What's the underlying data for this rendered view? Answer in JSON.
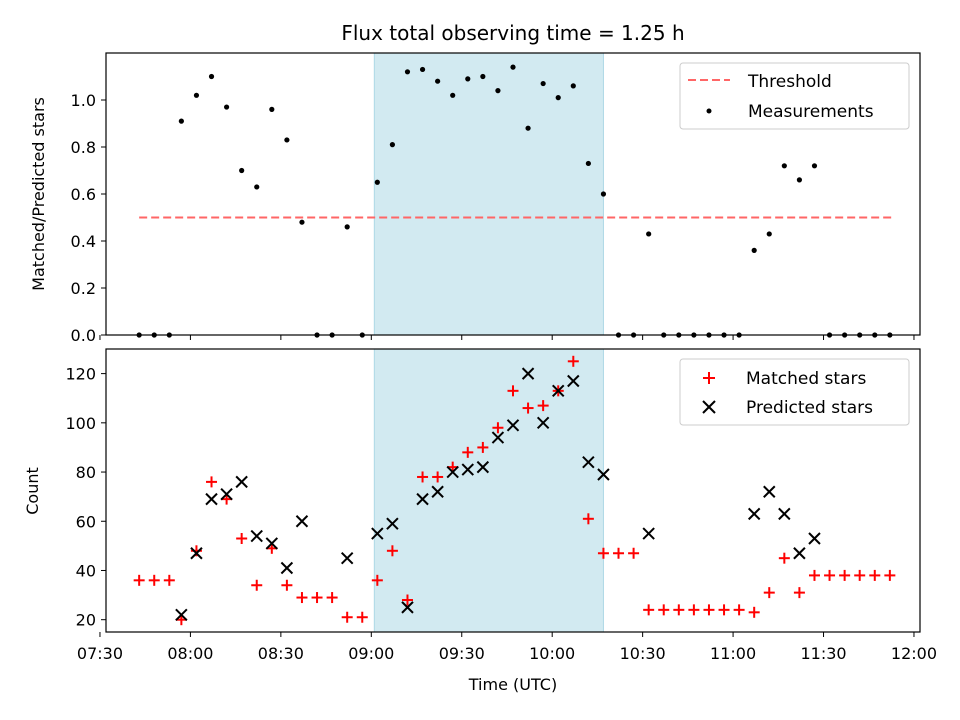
{
  "title": "Flux total observing time = 1.25 h",
  "colors": {
    "threshold": "#ff6666",
    "measurement": "#000000",
    "matched": "#ff0000",
    "predicted": "#000000",
    "highlight": "#add8e6"
  },
  "chart_data": [
    {
      "type": "scatter",
      "ylabel": "Matched/Predicted stars",
      "xlim": [
        "07:32",
        "12:02"
      ],
      "ylim": [
        0,
        1.2
      ],
      "yticks": [
        "0.0",
        "0.2",
        "0.4",
        "0.6",
        "0.8",
        "1.0"
      ],
      "legend_position": "top-right",
      "highlight_span": [
        "09:01",
        "10:17"
      ],
      "threshold": {
        "name": "Threshold",
        "value": 0.5,
        "x": [
          "07:43",
          "11:53"
        ]
      },
      "series": [
        {
          "name": "Measurements",
          "points": [
            [
              "07:43",
              0
            ],
            [
              "07:48",
              0
            ],
            [
              "07:53",
              0
            ],
            [
              "07:57",
              0.91
            ],
            [
              "08:02",
              1.02
            ],
            [
              "08:07",
              1.1
            ],
            [
              "08:12",
              0.97
            ],
            [
              "08:17",
              0.7
            ],
            [
              "08:22",
              0.63
            ],
            [
              "08:27",
              0.96
            ],
            [
              "08:32",
              0.83
            ],
            [
              "08:37",
              0.48
            ],
            [
              "08:42",
              0
            ],
            [
              "08:47",
              0
            ],
            [
              "08:52",
              0.46
            ],
            [
              "08:57",
              0
            ],
            [
              "09:02",
              0.65
            ],
            [
              "09:07",
              0.81
            ],
            [
              "09:12",
              1.12
            ],
            [
              "09:17",
              1.13
            ],
            [
              "09:22",
              1.08
            ],
            [
              "09:27",
              1.02
            ],
            [
              "09:32",
              1.09
            ],
            [
              "09:37",
              1.1
            ],
            [
              "09:42",
              1.04
            ],
            [
              "09:47",
              1.14
            ],
            [
              "09:52",
              0.88
            ],
            [
              "09:57",
              1.07
            ],
            [
              "10:02",
              1.01
            ],
            [
              "10:07",
              1.06
            ],
            [
              "10:12",
              0.73
            ],
            [
              "10:17",
              0.6
            ],
            [
              "10:22",
              0
            ],
            [
              "10:27",
              0
            ],
            [
              "10:32",
              0.43
            ],
            [
              "10:37",
              0
            ],
            [
              "10:42",
              0
            ],
            [
              "10:47",
              0
            ],
            [
              "10:52",
              0
            ],
            [
              "10:57",
              0
            ],
            [
              "11:02",
              0
            ],
            [
              "11:07",
              0.36
            ],
            [
              "11:12",
              0.43
            ],
            [
              "11:17",
              0.72
            ],
            [
              "11:22",
              0.66
            ],
            [
              "11:27",
              0.72
            ],
            [
              "11:32",
              0
            ],
            [
              "11:37",
              0
            ],
            [
              "11:42",
              0
            ],
            [
              "11:47",
              0
            ],
            [
              "11:52",
              0
            ]
          ]
        }
      ]
    },
    {
      "type": "scatter",
      "xlabel": "Time (UTC)",
      "ylabel": "Count",
      "xlim": [
        "07:32",
        "12:02"
      ],
      "ylim": [
        15,
        130
      ],
      "xticks": [
        "07:30",
        "08:00",
        "08:30",
        "09:00",
        "09:30",
        "10:00",
        "10:30",
        "11:00",
        "11:30",
        "12:00"
      ],
      "yticks": [
        "20",
        "40",
        "60",
        "80",
        "100",
        "120"
      ],
      "legend_position": "top-right",
      "highlight_span": [
        "09:01",
        "10:17"
      ],
      "series": [
        {
          "name": "Matched stars",
          "points": [
            [
              "07:43",
              36
            ],
            [
              "07:48",
              36
            ],
            [
              "07:53",
              36
            ],
            [
              "07:57",
              20
            ],
            [
              "08:02",
              48
            ],
            [
              "08:07",
              76
            ],
            [
              "08:12",
              69
            ],
            [
              "08:17",
              53
            ],
            [
              "08:22",
              34
            ],
            [
              "08:27",
              49
            ],
            [
              "08:32",
              34
            ],
            [
              "08:37",
              29
            ],
            [
              "08:42",
              29
            ],
            [
              "08:47",
              29
            ],
            [
              "08:52",
              21
            ],
            [
              "08:57",
              21
            ],
            [
              "09:02",
              36
            ],
            [
              "09:07",
              48
            ],
            [
              "09:12",
              28
            ],
            [
              "09:17",
              78
            ],
            [
              "09:22",
              78
            ],
            [
              "09:27",
              82
            ],
            [
              "09:32",
              88
            ],
            [
              "09:37",
              90
            ],
            [
              "09:42",
              98
            ],
            [
              "09:47",
              113
            ],
            [
              "09:52",
              106
            ],
            [
              "09:57",
              107
            ],
            [
              "10:02",
              113
            ],
            [
              "10:07",
              125
            ],
            [
              "10:12",
              61
            ],
            [
              "10:17",
              47
            ],
            [
              "10:22",
              47
            ],
            [
              "10:27",
              47
            ],
            [
              "10:32",
              24
            ],
            [
              "10:37",
              24
            ],
            [
              "10:42",
              24
            ],
            [
              "10:47",
              24
            ],
            [
              "10:52",
              24
            ],
            [
              "10:57",
              24
            ],
            [
              "11:02",
              24
            ],
            [
              "11:07",
              23
            ],
            [
              "11:12",
              31
            ],
            [
              "11:17",
              45
            ],
            [
              "11:22",
              31
            ],
            [
              "11:27",
              38
            ],
            [
              "11:32",
              38
            ],
            [
              "11:37",
              38
            ],
            [
              "11:42",
              38
            ],
            [
              "11:47",
              38
            ],
            [
              "11:52",
              38
            ]
          ]
        },
        {
          "name": "Predicted stars",
          "points": [
            [
              "07:57",
              22
            ],
            [
              "08:02",
              47
            ],
            [
              "08:07",
              69
            ],
            [
              "08:12",
              71
            ],
            [
              "08:17",
              76
            ],
            [
              "08:22",
              54
            ],
            [
              "08:27",
              51
            ],
            [
              "08:32",
              41
            ],
            [
              "08:37",
              60
            ],
            [
              "08:52",
              45
            ],
            [
              "09:02",
              55
            ],
            [
              "09:07",
              59
            ],
            [
              "09:12",
              25
            ],
            [
              "09:17",
              69
            ],
            [
              "09:22",
              72
            ],
            [
              "09:27",
              80
            ],
            [
              "09:32",
              81
            ],
            [
              "09:37",
              82
            ],
            [
              "09:42",
              94
            ],
            [
              "09:47",
              99
            ],
            [
              "09:52",
              120
            ],
            [
              "09:57",
              100
            ],
            [
              "10:02",
              113
            ],
            [
              "10:07",
              117
            ],
            [
              "10:12",
              84
            ],
            [
              "10:17",
              79
            ],
            [
              "10:32",
              55
            ],
            [
              "11:07",
              63
            ],
            [
              "11:12",
              72
            ],
            [
              "11:17",
              63
            ],
            [
              "11:22",
              47
            ],
            [
              "11:27",
              53
            ]
          ]
        }
      ]
    }
  ]
}
